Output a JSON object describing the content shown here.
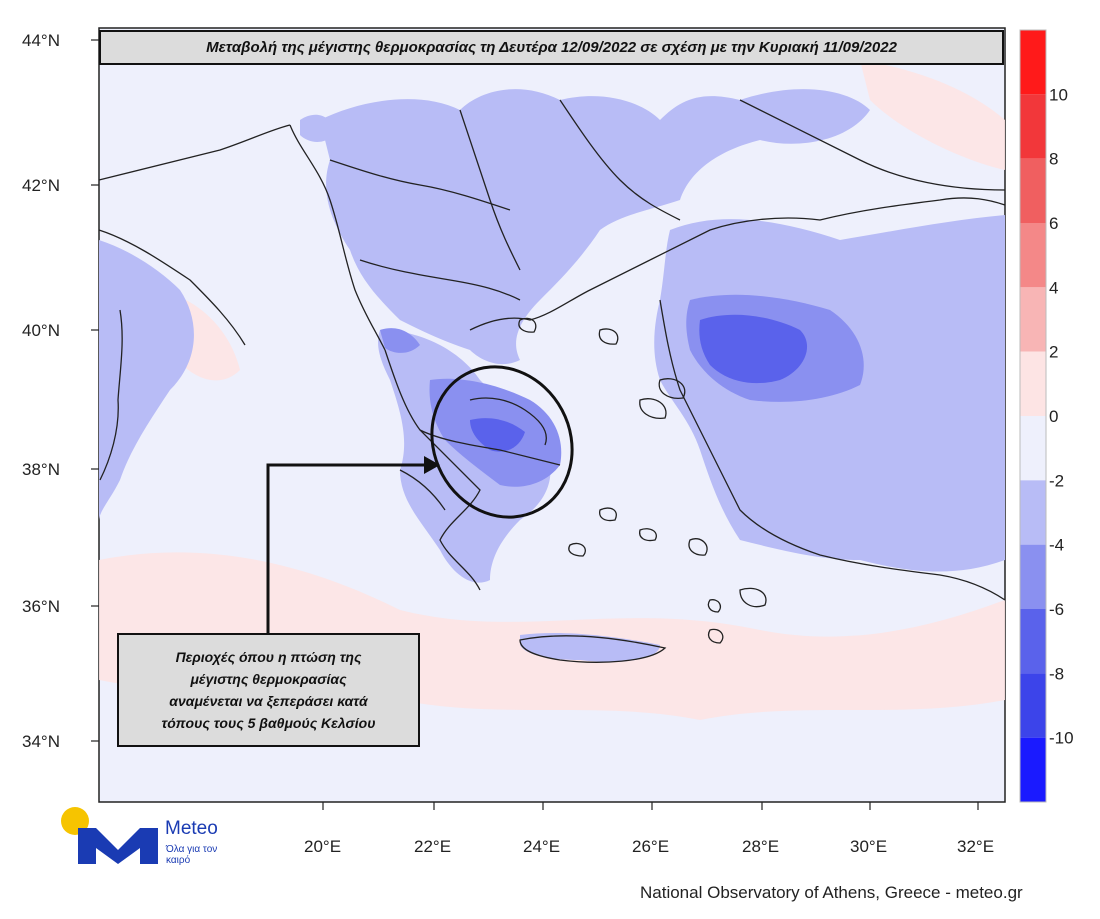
{
  "title": "Μεταβολή της μέγιστης θερμοκρασίας τη Δευτέρα 12/09/2022 σε σχέση με την Κυριακή 11/09/2022",
  "annotation": {
    "lines": [
      "Περιοχές όπου η πτώση της",
      "μέγιστης θερμοκρασίας",
      "αναμένεται να ξεπεράσει κατά",
      "τόπους τους 5 βαθμούς Κελσίου"
    ]
  },
  "latitude_labels": [
    "44°N",
    "42°N",
    "40°N",
    "38°N",
    "36°N",
    "34°N"
  ],
  "longitude_labels": [
    "20°E",
    "22°E",
    "24°E",
    "26°E",
    "28°E",
    "30°E",
    "32°E"
  ],
  "colorbar": {
    "ticks": [
      "10",
      "8",
      "6",
      "4",
      "2",
      "0",
      "-2",
      "-4",
      "-6",
      "-8",
      "-10"
    ],
    "bins": [
      {
        "range": "10 to 12",
        "color": "#ff1a1a"
      },
      {
        "range": "8 to 10",
        "color": "#f2373a"
      },
      {
        "range": "6 to 8",
        "color": "#f05f60"
      },
      {
        "range": "4 to 6",
        "color": "#f48888"
      },
      {
        "range": "2 to 4",
        "color": "#f8b5b5"
      },
      {
        "range": "0 to 2",
        "color": "#fde4e4"
      },
      {
        "range": "-2 to 0",
        "color": "#eef0fc"
      },
      {
        "range": "-4 to -2",
        "color": "#b8bcf6"
      },
      {
        "range": "-6 to -4",
        "color": "#8a90f0"
      },
      {
        "range": "-8 to -6",
        "color": "#5a62eb"
      },
      {
        "range": "-10 to -8",
        "color": "#3c44ea"
      },
      {
        "range": "-12 to -10",
        "color": "#1a1aff"
      }
    ]
  },
  "logo": {
    "name": "Meteo",
    "tagline": "Όλα για τον καιρό"
  },
  "credit": "National Observatory of Athens, Greece - meteo.gr"
}
